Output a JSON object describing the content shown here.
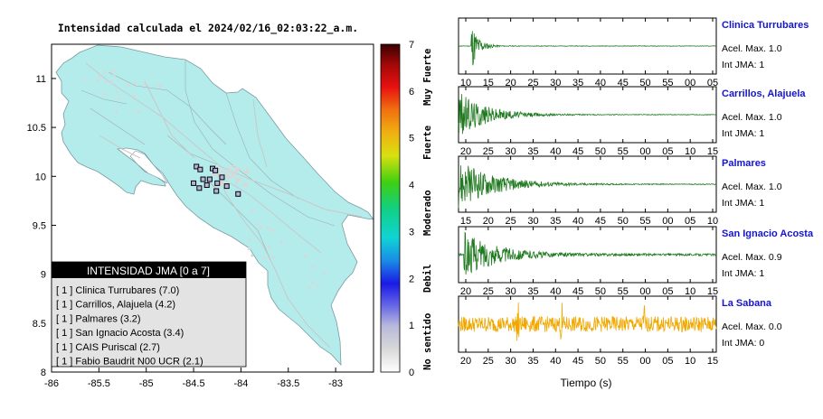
{
  "map": {
    "title": "Intensidad calculada el 2024/02/16_02:03:22_a.m.",
    "x_ticks": [
      "-86",
      "-85.5",
      "-85",
      "-84.5",
      "-84",
      "-83.5",
      "-83"
    ],
    "y_ticks": [
      "11",
      "10.5",
      "10",
      "9.5",
      "9",
      "8.5",
      "8"
    ],
    "xlim": [
      -86,
      -82.6
    ],
    "ylim": [
      8,
      11.35
    ],
    "land_color": "#b4ecec",
    "sea_color": "#ffffff",
    "stations": [
      {
        "lon": -84.47,
        "lat": 10.1
      },
      {
        "lon": -84.43,
        "lat": 10.07
      },
      {
        "lon": -84.3,
        "lat": 10.08
      },
      {
        "lon": -84.27,
        "lat": 10.06
      },
      {
        "lon": -84.4,
        "lat": 9.97
      },
      {
        "lon": -84.33,
        "lat": 9.97
      },
      {
        "lon": -84.2,
        "lat": 9.99
      },
      {
        "lon": -84.44,
        "lat": 9.88
      },
      {
        "lon": -84.5,
        "lat": 9.93
      },
      {
        "lon": -84.36,
        "lat": 9.91
      },
      {
        "lon": -84.25,
        "lat": 9.93
      },
      {
        "lon": -84.26,
        "lat": 9.85
      },
      {
        "lon": -84.15,
        "lat": 9.9
      },
      {
        "lon": -84.03,
        "lat": 9.82
      }
    ]
  },
  "colorbar": {
    "ticks": [
      "0",
      "1",
      "2",
      "3",
      "4",
      "5",
      "6",
      "7"
    ],
    "range": [
      0,
      7
    ],
    "categories": [
      "No sentido",
      "Debil",
      "Moderado",
      "Fuerte",
      "Muy Fuerte"
    ]
  },
  "legend": {
    "title": "INTENSIDAD JMA [0 a 7]",
    "items": [
      "[ 1 ]  Clinica Turrubares (7.0)",
      "[ 1 ]  Carrillos, Alajuela (4.2)",
      "[ 1 ]  Palmares (3.2)",
      "[ 1 ]  San Ignacio Acosta (3.4)",
      "[ 1 ]  CAIS Puriscal (2.7)",
      "[ 1 ]  Fabio Baudrit N00 UCR (2.1)"
    ]
  },
  "chart_data": {
    "type": "line",
    "xlabel": "Tiempo (s)",
    "panels": [
      {
        "station": "Clinica Turrubares",
        "acel": "Acel. Max. 1.0",
        "int": "Int JMA: 1",
        "ticks": [
          "10",
          "15",
          "20",
          "25",
          "30",
          "35",
          "40",
          "45",
          "50",
          "55",
          "00",
          "05"
        ],
        "color": "#1f7a1f",
        "onset": 0.05,
        "peak": 0.95,
        "decay": 0.028,
        "noise": 0.01
      },
      {
        "station": "Carrillos, Alajuela",
        "acel": "Acel. Max. 1.0",
        "int": "Int JMA: 1",
        "ticks": [
          "20",
          "25",
          "30",
          "35",
          "40",
          "45",
          "50",
          "55",
          "00",
          "05",
          "10",
          "15"
        ],
        "color": "#1f7a1f",
        "onset": 0.0,
        "peak": 0.9,
        "decay": 0.11,
        "noise": 0.012
      },
      {
        "station": "Palmares",
        "acel": "Acel. Max. 1.0",
        "int": "Int JMA: 1",
        "ticks": [
          "15",
          "20",
          "25",
          "30",
          "35",
          "40",
          "45",
          "50",
          "55",
          "00",
          "05",
          "10"
        ],
        "color": "#1f7a1f",
        "onset": 0.0,
        "peak": 0.92,
        "decay": 0.14,
        "noise": 0.015
      },
      {
        "station": "San Ignacio Acosta",
        "acel": "Acel. Max. 0.9",
        "int": "Int JMA: 1",
        "ticks": [
          "20",
          "25",
          "30",
          "35",
          "40",
          "45",
          "50",
          "55",
          "00",
          "05",
          "10",
          "15"
        ],
        "color": "#1f7a1f",
        "onset": 0.02,
        "peak": 0.85,
        "decay": 0.13,
        "noise": 0.04
      },
      {
        "station": "La Sabana",
        "acel": "Acel. Max. 0.0",
        "int": "Int JMA: 0",
        "ticks": [
          "20",
          "25",
          "30",
          "35",
          "40",
          "45",
          "50",
          "55",
          "00",
          "05",
          "10",
          "15"
        ],
        "color": "#f0a800",
        "onset": 0.0,
        "peak": 0.35,
        "decay": 2.0,
        "noise": 0.3
      }
    ]
  }
}
